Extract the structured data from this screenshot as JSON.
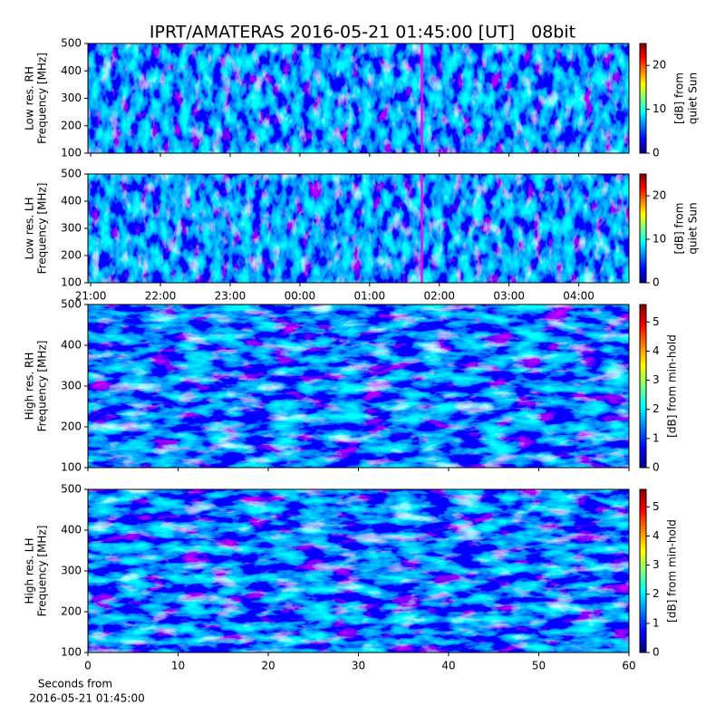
{
  "chart_data": [
    {
      "type": "heatmap",
      "title": "IPRT/AMATERAS 2016-05-21 01:45:00 [UT]   08bit",
      "ylabel": [
        "Low res. RH",
        "Frequency [MHz]"
      ],
      "ylim": [
        100,
        500
      ],
      "yticks": [
        100,
        200,
        300,
        400,
        500
      ],
      "xlim": [
        20.96,
        28.72
      ],
      "colorbar": {
        "label": [
          "[dB] from",
          "quiet Sun"
        ],
        "lim": [
          0,
          25
        ],
        "ticks": [
          0,
          10,
          20
        ]
      },
      "marker": {
        "x": 25.75,
        "color": "#ff00ff"
      }
    },
    {
      "type": "heatmap",
      "ylabel": [
        "Low res. LH",
        "Frequency [MHz]"
      ],
      "ylim": [
        100,
        500
      ],
      "yticks": [
        100,
        200,
        300,
        400,
        500
      ],
      "xlim": [
        20.96,
        28.72
      ],
      "xticks": [
        {
          "value": 21,
          "label": "21:00"
        },
        {
          "value": 22,
          "label": "22:00"
        },
        {
          "value": 23,
          "label": "23:00"
        },
        {
          "value": 24,
          "label": "00:00"
        },
        {
          "value": 25,
          "label": "01:00"
        },
        {
          "value": 26,
          "label": "02:00"
        },
        {
          "value": 27,
          "label": "03:00"
        },
        {
          "value": 28,
          "label": "04:00"
        }
      ],
      "colorbar": {
        "label": [
          "[dB] from",
          "quiet Sun"
        ],
        "lim": [
          0,
          25
        ],
        "ticks": [
          0,
          10,
          20
        ]
      },
      "marker": {
        "x": 25.75,
        "color": "#ff00ff"
      }
    },
    {
      "type": "heatmap",
      "ylabel": [
        "High res. RH",
        "Frequency [MHz]"
      ],
      "ylim": [
        100,
        500
      ],
      "yticks": [
        100,
        200,
        300,
        400,
        500
      ],
      "xlim": [
        0,
        60
      ],
      "colorbar": {
        "label": [
          "[dB] from min-hold"
        ],
        "lim": [
          0,
          5.6
        ],
        "ticks": [
          0,
          1,
          2,
          3,
          4,
          5
        ]
      }
    },
    {
      "type": "heatmap",
      "ylabel": [
        "High res. LH",
        "Frequency [MHz]"
      ],
      "ylim": [
        100,
        500
      ],
      "yticks": [
        100,
        200,
        300,
        400,
        500
      ],
      "xlim": [
        0,
        60
      ],
      "xticks": [
        0,
        10,
        20,
        30,
        40,
        50,
        60
      ],
      "xlabel": [
        "Seconds from",
        "2016-05-21 01:45:00"
      ],
      "colorbar": {
        "label": [
          "[dB] from min-hold"
        ],
        "lim": [
          0,
          5.6
        ],
        "ticks": [
          0,
          1,
          2,
          3,
          4,
          5
        ]
      }
    }
  ]
}
